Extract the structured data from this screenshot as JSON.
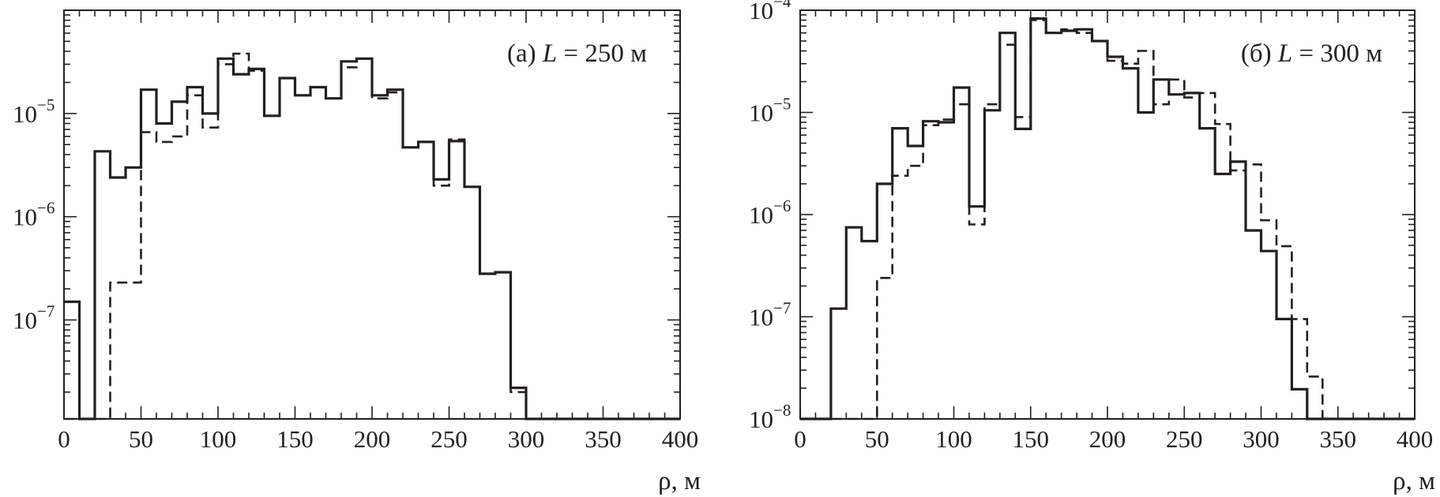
{
  "chart_data": [
    {
      "type": "line",
      "step": "histogram",
      "panel_label": {
        "prefix": "(а) ",
        "var": "L",
        "rest": " = 250 м"
      },
      "xlabel": "ρ, м",
      "ylabel": "",
      "xlim": [
        0,
        400
      ],
      "ylim": [
        1.1e-08,
        0.0001
      ],
      "yscale": "log",
      "grid": false,
      "bin_width": 10,
      "x_ticks": [
        "0",
        "50",
        "100",
        "150",
        "200",
        "250",
        "300",
        "350",
        "400"
      ],
      "y_ticks": [
        {
          "base": "10",
          "exp": "−7",
          "value": 1e-07
        },
        {
          "base": "10",
          "exp": "−6",
          "value": 1e-06
        },
        {
          "base": "10",
          "exp": "−5",
          "value": 1e-05
        }
      ],
      "x": [
        0,
        10,
        20,
        30,
        40,
        50,
        60,
        70,
        80,
        90,
        100,
        110,
        120,
        130,
        140,
        150,
        160,
        170,
        180,
        190,
        200,
        210,
        220,
        230,
        240,
        250,
        260,
        270,
        280,
        290,
        300,
        310,
        320,
        330,
        340,
        350,
        360,
        370,
        380,
        390
      ],
      "series": [
        {
          "style": "solid",
          "values": [
            1.5e-07,
            1.1e-08,
            4.3e-06,
            2.4e-06,
            3e-06,
            1.7e-05,
            8e-06,
            1.3e-05,
            1.8e-05,
            1e-05,
            3.4e-05,
            2.4e-05,
            2.7e-05,
            9.5e-06,
            2.2e-05,
            1.5e-05,
            1.8e-05,
            1.4e-05,
            3.2e-05,
            3.4e-05,
            1.5e-05,
            1.7e-05,
            4.7e-06,
            5.3e-06,
            2.3e-06,
            5.4e-06,
            1.95e-06,
            2.8e-07,
            2.9e-07,
            2.2e-08,
            1.1e-08,
            1.1e-08,
            1.1e-08,
            1.1e-08,
            1.1e-08,
            1.1e-08,
            1.1e-08,
            1.1e-08,
            1.1e-08,
            1.1e-08
          ]
        },
        {
          "style": "dashed",
          "values": [
            1.1e-08,
            1.1e-08,
            1.1e-08,
            2.3e-07,
            2.3e-07,
            6.6e-06,
            5.3e-06,
            6e-06,
            1.5e-05,
            7.3e-06,
            3e-05,
            3.8e-05,
            2.6e-05,
            9.5e-06,
            2.2e-05,
            1.5e-05,
            1.8e-05,
            1.4e-05,
            2.8e-05,
            3.4e-05,
            1.4e-05,
            1.6e-05,
            4.7e-06,
            5.3e-06,
            2e-06,
            5.6e-06,
            1.95e-06,
            2.8e-07,
            2.9e-07,
            2e-08,
            1.1e-08,
            1.1e-08,
            1.1e-08,
            1.1e-08,
            1.1e-08,
            1.1e-08,
            1.1e-08,
            1.1e-08,
            1.1e-08,
            1.1e-08
          ]
        }
      ]
    },
    {
      "type": "line",
      "step": "histogram",
      "panel_label": {
        "prefix": "(б) ",
        "var": "L",
        "rest": " = 300 м"
      },
      "xlabel": "ρ, м",
      "ylabel": "",
      "xlim": [
        0,
        400
      ],
      "ylim": [
        1e-08,
        0.0001
      ],
      "yscale": "log",
      "grid": false,
      "bin_width": 10,
      "x_ticks": [
        "0",
        "50",
        "100",
        "150",
        "200",
        "250",
        "300",
        "350",
        "400"
      ],
      "y_ticks": [
        {
          "base": "10",
          "exp": "−8",
          "value": 1e-08
        },
        {
          "base": "10",
          "exp": "−7",
          "value": 1e-07
        },
        {
          "base": "10",
          "exp": "−6",
          "value": 1e-06
        },
        {
          "base": "10",
          "exp": "−5",
          "value": 1e-05
        },
        {
          "base": "10",
          "exp": "−4",
          "value": 0.0001
        }
      ],
      "x": [
        0,
        10,
        20,
        30,
        40,
        50,
        60,
        70,
        80,
        90,
        100,
        110,
        120,
        130,
        140,
        150,
        160,
        170,
        180,
        190,
        200,
        210,
        220,
        230,
        240,
        250,
        260,
        270,
        280,
        290,
        300,
        310,
        320,
        330,
        340,
        350,
        360,
        370,
        380,
        390
      ],
      "series": [
        {
          "style": "solid",
          "values": [
            1e-08,
            1e-08,
            1.2e-07,
            7.5e-07,
            5.5e-07,
            2e-06,
            7e-06,
            4.7e-06,
            8.2e-06,
            8e-06,
            1.75e-05,
            1.2e-06,
            1.05e-05,
            6e-05,
            6.9e-06,
            8.3e-05,
            6e-05,
            6.3e-05,
            6.5e-05,
            5e-05,
            3.5e-05,
            2.7e-05,
            1e-05,
            2.1e-05,
            1.5e-05,
            1.55e-05,
            7e-06,
            2.5e-06,
            3.3e-06,
            7e-07,
            4.4e-07,
            9.5e-08,
            1.95e-08,
            1e-08,
            1e-08,
            1e-08,
            1e-08,
            1e-08,
            1e-08,
            1e-08
          ]
        },
        {
          "style": "dashed",
          "values": [
            1e-08,
            1e-08,
            1e-08,
            1e-08,
            1e-08,
            2.4e-07,
            2.4e-06,
            3e-06,
            7.5e-06,
            8.5e-06,
            1.2e-05,
            8e-07,
            1.2e-05,
            4.6e-05,
            9e-06,
            8e-05,
            6e-05,
            6.5e-05,
            6e-05,
            5e-05,
            3.2e-05,
            3e-05,
            4e-05,
            1.2e-05,
            2.1e-05,
            1.4e-05,
            1.55e-05,
            7.7e-06,
            2.7e-06,
            3.1e-06,
            8.8e-07,
            4.9e-07,
            9.5e-08,
            2.6e-08,
            1e-08,
            1e-08,
            1e-08,
            1e-08,
            1e-08,
            1e-08
          ]
        }
      ]
    }
  ]
}
